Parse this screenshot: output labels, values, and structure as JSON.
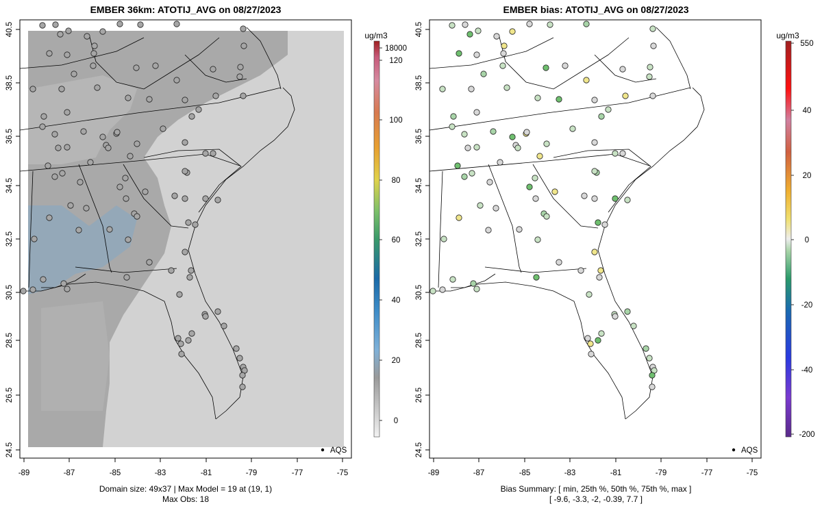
{
  "left_panel": {
    "title": "EMBER 36km: ATOTIJ_AVG on 08/27/2023",
    "x_ticks": [
      "-89",
      "-87",
      "-85",
      "-83",
      "-81",
      "-79",
      "-77",
      "-75"
    ],
    "y_ticks": [
      "40.5",
      "38.5",
      "36.5",
      "34.5",
      "32.5",
      "30.5",
      "28.5",
      "26.5",
      "24.5"
    ],
    "legend_text": "AQS",
    "caption_line1": "Domain size: 49x37 | Max Model = 19 at (19, 1)",
    "caption_line2": "Max Obs: 18",
    "colorbar": {
      "unit": "ug/m3",
      "labels": [
        "18000",
        "120",
        "100",
        "80",
        "60",
        "40",
        "20",
        "0"
      ]
    }
  },
  "right_panel": {
    "title": "EMBER bias: ATOTIJ_AVG on 08/27/2023",
    "x_ticks": [
      "-89",
      "-87",
      "-85",
      "-83",
      "-81",
      "-79",
      "-77",
      "-75"
    ],
    "y_ticks": [
      "40.5",
      "38.5",
      "36.5",
      "34.5",
      "32.5",
      "30.5",
      "28.5",
      "26.5",
      "24.5"
    ],
    "legend_text": "AQS",
    "caption_line1": "Bias Summary: [ min, 25th %, 50th %, 75th %, max ]",
    "caption_line2": "[ -9.6,   -3.3,   -2,   -0.39,   7.7 ]",
    "colorbar": {
      "unit": "ug/m3",
      "labels": [
        "550",
        "40",
        "20",
        "0",
        "-20",
        "-40",
        "-200"
      ]
    }
  },
  "colors": {
    "map_fill": "#d2d2d2",
    "model_dark": "#a8a8a8",
    "model_mid": "#bcbcbc",
    "model_blue": "#8aa6bc",
    "site_grey": "#c2c2c2",
    "site_green_light": "#c8e2c4",
    "site_green": "#6fbf6f",
    "site_yellow": "#f0e68c"
  }
}
